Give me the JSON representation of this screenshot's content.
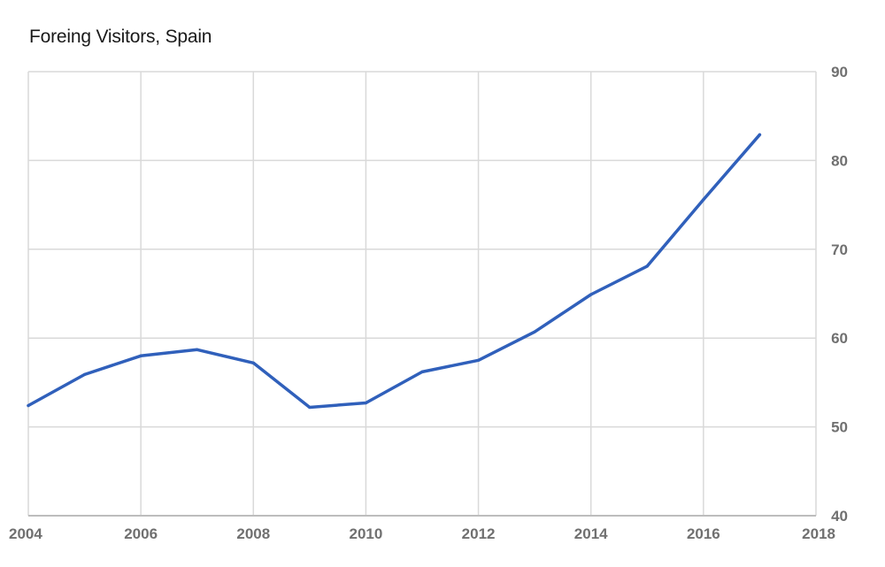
{
  "title": "Foreing Visitors, Spain",
  "chart_data": {
    "type": "line",
    "title": "Foreing Visitors, Spain",
    "xlabel": "",
    "ylabel": "",
    "x": [
      2004,
      2005,
      2006,
      2007,
      2008,
      2009,
      2010,
      2011,
      2012,
      2013,
      2014,
      2015,
      2016,
      2017
    ],
    "series": [
      {
        "values": [
          52.4,
          55.9,
          58.0,
          58.7,
          57.2,
          52.2,
          52.7,
          56.2,
          57.5,
          60.7,
          64.9,
          68.1,
          75.6,
          82.9
        ],
        "color": "#3060bb"
      }
    ],
    "xlim": [
      2004,
      2018
    ],
    "ylim": [
      40,
      90
    ],
    "x_ticks": [
      "2004",
      "2006",
      "2008",
      "2010",
      "2012",
      "2014",
      "2016",
      "2018"
    ],
    "y_ticks": [
      "40",
      "50",
      "60",
      "70",
      "80",
      "90"
    ],
    "y_axis_position": "right",
    "grid": true
  }
}
